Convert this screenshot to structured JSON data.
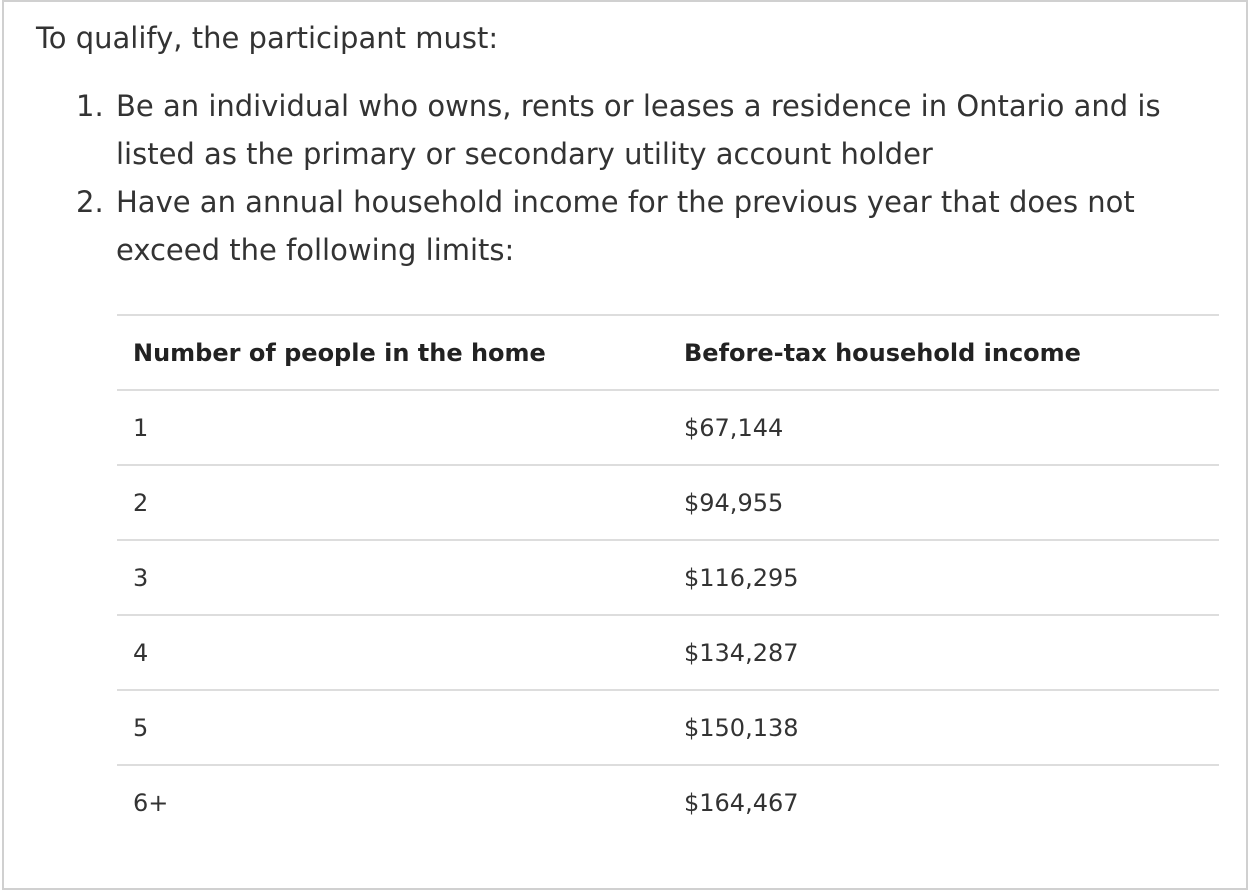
{
  "intro": "To qualify, the participant must:",
  "list": [
    {
      "marker": "1.",
      "text": "Be an individual who owns, rents or leases a residence in Ontario and is listed as the primary or secondary utility account holder"
    },
    {
      "marker": "2.",
      "text": "Have an annual household income for the previous year that does not exceed the following limits:"
    }
  ],
  "table": {
    "header": [
      "Number of people in the home",
      "Before-tax household income"
    ],
    "rows": [
      [
        "1",
        "$67,144"
      ],
      [
        "2",
        "$94,955"
      ],
      [
        "3",
        "$116,295"
      ],
      [
        "4",
        "$134,287"
      ],
      [
        "5",
        "$150,138"
      ],
      [
        "6+",
        "$164,467"
      ]
    ]
  }
}
